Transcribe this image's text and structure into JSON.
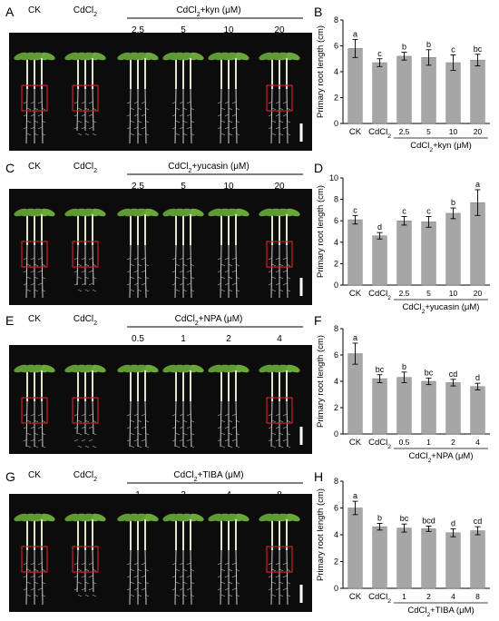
{
  "figure": {
    "panels": [
      {
        "photo": {
          "letter": "A",
          "treatment_labels": [
            "CK",
            "CdCl2"
          ],
          "bracket_label": "CdCl2+kyn (μM)",
          "concentrations": [
            "2.5",
            "5",
            "10",
            "20"
          ]
        },
        "chart": {
          "letter": "B",
          "chart_data": {
            "type": "bar",
            "categories": [
              "CK",
              "CdCl2",
              "2.5",
              "5",
              "10",
              "20"
            ],
            "values": [
              5.8,
              4.7,
              5.2,
              5.1,
              4.7,
              4.9
            ],
            "errors": [
              0.7,
              0.3,
              0.3,
              0.6,
              0.6,
              0.45
            ],
            "letters": [
              "a",
              "c",
              "b",
              "b",
              "c",
              "bc"
            ],
            "ylabel": "Primary root length (cm)",
            "ylim": [
              0,
              8
            ],
            "yticks": [
              0,
              2,
              4,
              6,
              8
            ],
            "group_label": "CdCl2+kyn (μM)",
            "bar_color": "#a6a6a6"
          }
        }
      },
      {
        "photo": {
          "letter": "C",
          "treatment_labels": [
            "CK",
            "CdCl2"
          ],
          "bracket_label": "CdCl2+yucasin (μM)",
          "concentrations": [
            "2.5",
            "5",
            "10",
            "20"
          ]
        },
        "chart": {
          "letter": "D",
          "chart_data": {
            "type": "bar",
            "categories": [
              "CK",
              "CdCl2",
              "2.5",
              "5",
              "10",
              "20"
            ],
            "values": [
              6.1,
              4.6,
              6.0,
              5.9,
              6.7,
              7.7
            ],
            "errors": [
              0.4,
              0.3,
              0.4,
              0.5,
              0.5,
              1.2
            ],
            "letters": [
              "c",
              "d",
              "c",
              "c",
              "b",
              "a"
            ],
            "ylabel": "Primary root length (cm)",
            "ylim": [
              0,
              10
            ],
            "yticks": [
              0,
              2,
              4,
              6,
              8,
              10
            ],
            "group_label": "CdCl2+yucasin (μM)",
            "bar_color": "#a6a6a6"
          }
        }
      },
      {
        "photo": {
          "letter": "E",
          "treatment_labels": [
            "CK",
            "CdCl2"
          ],
          "bracket_label": "CdCl2+NPA (μM)",
          "concentrations": [
            "0.5",
            "1",
            "2",
            "4"
          ]
        },
        "chart": {
          "letter": "F",
          "chart_data": {
            "type": "bar",
            "categories": [
              "CK",
              "CdCl2",
              "0.5",
              "1",
              "2",
              "4"
            ],
            "values": [
              6.1,
              4.2,
              4.3,
              4.0,
              3.9,
              3.6
            ],
            "errors": [
              0.8,
              0.3,
              0.4,
              0.25,
              0.25,
              0.25
            ],
            "letters": [
              "a",
              "bc",
              "b",
              "bc",
              "cd",
              "d"
            ],
            "ylabel": "Primary root length (cm)",
            "ylim": [
              0,
              8
            ],
            "yticks": [
              0,
              2,
              4,
              6,
              8
            ],
            "group_label": "CdCl2+NPA (μM)",
            "bar_color": "#a6a6a6"
          }
        }
      },
      {
        "photo": {
          "letter": "G",
          "treatment_labels": [
            "CK",
            "CdCl2"
          ],
          "bracket_label": "CdCl2+TIBA (μM)",
          "concentrations": [
            "1",
            "2",
            "4",
            "8"
          ]
        },
        "chart": {
          "letter": "H",
          "chart_data": {
            "type": "bar",
            "categories": [
              "CK",
              "CdCl2",
              "1",
              "2",
              "4",
              "8"
            ],
            "values": [
              6.0,
              4.6,
              4.5,
              4.45,
              4.15,
              4.3
            ],
            "errors": [
              0.5,
              0.25,
              0.3,
              0.2,
              0.3,
              0.3
            ],
            "letters": [
              "a",
              "b",
              "bc",
              "bcd",
              "d",
              "cd"
            ],
            "ylabel": "Primary root length (cm)",
            "ylim": [
              0,
              8
            ],
            "yticks": [
              0,
              2,
              4,
              6,
              8
            ],
            "group_label": "CdCl2+TIBA (μM)",
            "bar_color": "#a6a6a6"
          }
        }
      }
    ]
  }
}
